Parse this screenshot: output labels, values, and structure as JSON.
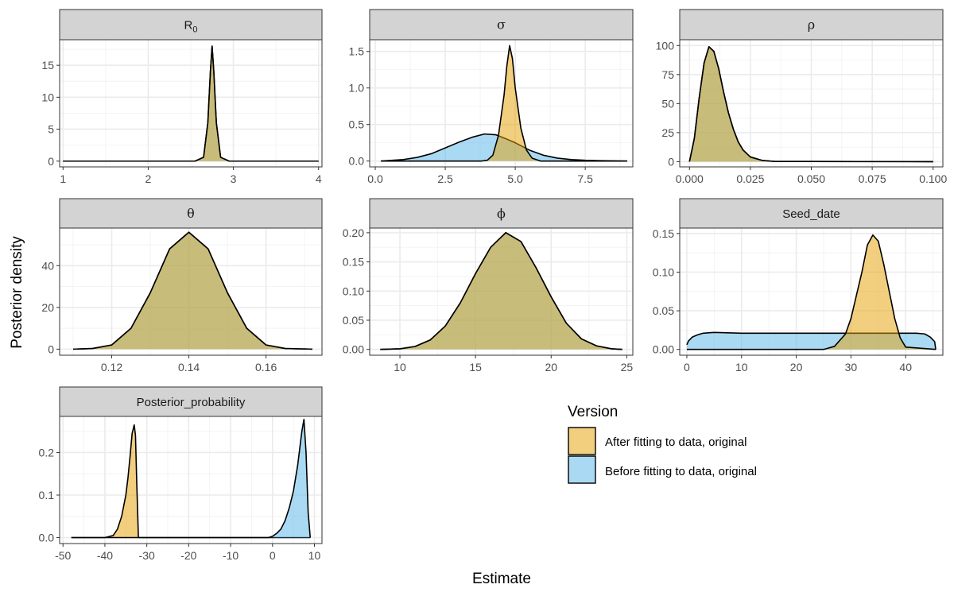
{
  "chart_data": {
    "type": "area",
    "xlabel": "Estimate",
    "ylabel": "Posterior density",
    "legend": {
      "title": "Version",
      "position": "right",
      "entries": [
        {
          "key": "after",
          "label": "After fitting to data, original",
          "color": "#E69F00"
        },
        {
          "key": "before",
          "label": "Before fitting to data, original",
          "color": "#56B4E9"
        }
      ]
    },
    "panels": [
      {
        "id": "R0",
        "title_base": "R",
        "title_sub": "0",
        "xlim": [
          0.96,
          4.04
        ],
        "ylim": [
          -0.9,
          19.0
        ],
        "xticks": [
          1,
          2,
          3,
          4
        ],
        "xtick_labels": [
          "1",
          "2",
          "3",
          "4"
        ],
        "yticks": [
          0,
          5,
          10,
          15
        ],
        "ytick_labels": [
          "0",
          "5",
          "10",
          "15"
        ],
        "series": [
          {
            "name": "before",
            "x": [
              1.0,
              2.55,
              2.65,
              2.7,
              2.73,
              2.75,
              2.77,
              2.8,
              2.85,
              2.95,
              4.0
            ],
            "y": [
              0,
              0,
              0.6,
              6,
              14,
              18,
              14,
              6,
              0.6,
              0,
              0
            ]
          },
          {
            "name": "after",
            "x": [
              1.0,
              2.55,
              2.65,
              2.7,
              2.73,
              2.75,
              2.77,
              2.8,
              2.85,
              2.95,
              4.0
            ],
            "y": [
              0,
              0,
              0.6,
              6,
              14,
              18,
              14,
              6,
              0.6,
              0,
              0
            ]
          }
        ]
      },
      {
        "id": "sigma",
        "title": "σ",
        "xlim": [
          -0.2,
          9.2
        ],
        "ylim": [
          -0.08,
          1.66
        ],
        "xticks": [
          0,
          2.5,
          5,
          7.5
        ],
        "xtick_labels": [
          "0.0",
          "2.5",
          "5.0",
          "7.5"
        ],
        "yticks": [
          0,
          0.5,
          1.0,
          1.5
        ],
        "ytick_labels": [
          "0.0",
          "0.5",
          "1.0",
          "1.5"
        ],
        "series": [
          {
            "name": "before",
            "x": [
              0.2,
              1.0,
              1.5,
              2.0,
              2.5,
              3.0,
              3.5,
              3.9,
              4.3,
              4.7,
              5.0,
              5.5,
              6.0,
              6.5,
              7.0,
              7.5,
              8.0,
              9.0
            ],
            "y": [
              0,
              0.02,
              0.05,
              0.1,
              0.18,
              0.26,
              0.33,
              0.37,
              0.36,
              0.3,
              0.25,
              0.15,
              0.08,
              0.04,
              0.02,
              0.01,
              0.005,
              0
            ]
          },
          {
            "name": "after",
            "x": [
              0.2,
              3.8,
              4.0,
              4.2,
              4.4,
              4.6,
              4.7,
              4.8,
              4.9,
              5.0,
              5.2,
              5.4,
              5.6,
              5.9,
              9.0
            ],
            "y": [
              0,
              0,
              0.01,
              0.08,
              0.35,
              0.9,
              1.3,
              1.58,
              1.4,
              1.0,
              0.45,
              0.15,
              0.04,
              0,
              0
            ]
          }
        ]
      },
      {
        "id": "rho",
        "title": "ρ",
        "xlim": [
          -0.004,
          0.104
        ],
        "ylim": [
          -4.5,
          105
        ],
        "xticks": [
          0,
          0.025,
          0.05,
          0.075,
          0.1
        ],
        "xtick_labels": [
          "0.000",
          "0.025",
          "0.050",
          "0.075",
          "0.100"
        ],
        "yticks": [
          0,
          25,
          50,
          75,
          100
        ],
        "ytick_labels": [
          "0",
          "25",
          "50",
          "75",
          "100"
        ],
        "series": [
          {
            "name": "before",
            "x": [
              0.0,
              0.002,
              0.004,
              0.006,
              0.008,
              0.01,
              0.012,
              0.014,
              0.016,
              0.018,
              0.02,
              0.022,
              0.025,
              0.03,
              0.035,
              0.1
            ],
            "y": [
              0,
              20,
              55,
              85,
              99,
              95,
              80,
              60,
              42,
              28,
              17,
              10,
              4,
              1,
              0.2,
              0
            ]
          },
          {
            "name": "after",
            "x": [
              0.0,
              0.002,
              0.004,
              0.006,
              0.008,
              0.01,
              0.012,
              0.014,
              0.016,
              0.018,
              0.02,
              0.022,
              0.025,
              0.03,
              0.035,
              0.1
            ],
            "y": [
              0,
              20,
              55,
              85,
              99,
              95,
              80,
              60,
              42,
              28,
              17,
              10,
              4,
              1,
              0.2,
              0
            ]
          }
        ]
      },
      {
        "id": "theta",
        "title": "θ",
        "xlim": [
          0.1065,
          0.1745
        ],
        "ylim": [
          -2.9,
          58.0
        ],
        "xticks": [
          0.12,
          0.14,
          0.16
        ],
        "xtick_labels": [
          "0.12",
          "0.14",
          "0.16"
        ],
        "yticks": [
          0,
          20,
          40
        ],
        "ytick_labels": [
          "0",
          "20",
          "40"
        ],
        "series": [
          {
            "name": "before",
            "x": [
              0.11,
              0.115,
              0.12,
              0.125,
              0.13,
              0.135,
              0.14,
              0.145,
              0.15,
              0.155,
              0.16,
              0.165,
              0.172
            ],
            "y": [
              0,
              0.3,
              2,
              10,
              27,
              48,
              56,
              48,
              27,
              10,
              2,
              0.3,
              0
            ]
          },
          {
            "name": "after",
            "x": [
              0.11,
              0.115,
              0.12,
              0.125,
              0.13,
              0.135,
              0.14,
              0.145,
              0.15,
              0.155,
              0.16,
              0.165,
              0.172
            ],
            "y": [
              0,
              0.3,
              2,
              10,
              27,
              48,
              56,
              48,
              27,
              10,
              2,
              0.3,
              0
            ]
          }
        ]
      },
      {
        "id": "phi",
        "title": "ϕ",
        "xlim": [
          8.0,
          25.4
        ],
        "ylim": [
          -0.01,
          0.208
        ],
        "xticks": [
          10,
          15,
          20,
          25
        ],
        "xtick_labels": [
          "10",
          "15",
          "20",
          "25"
        ],
        "yticks": [
          0,
          0.05,
          0.1,
          0.15,
          0.2
        ],
        "ytick_labels": [
          "0.00",
          "0.05",
          "0.10",
          "0.15",
          "0.20"
        ],
        "series": [
          {
            "name": "before",
            "x": [
              8.7,
              10.0,
              11.0,
              12.0,
              13.0,
              14.0,
              15.0,
              16.0,
              17.0,
              18.0,
              19.0,
              20.0,
              21.0,
              22.0,
              23.0,
              24.0,
              24.7
            ],
            "y": [
              0,
              0.001,
              0.005,
              0.016,
              0.04,
              0.08,
              0.13,
              0.175,
              0.2,
              0.185,
              0.14,
              0.09,
              0.045,
              0.018,
              0.006,
              0.001,
              0
            ]
          },
          {
            "name": "after",
            "x": [
              8.7,
              10.0,
              11.0,
              12.0,
              13.0,
              14.0,
              15.0,
              16.0,
              17.0,
              18.0,
              19.0,
              20.0,
              21.0,
              22.0,
              23.0,
              24.0,
              24.7
            ],
            "y": [
              0,
              0.001,
              0.005,
              0.016,
              0.04,
              0.08,
              0.13,
              0.175,
              0.2,
              0.185,
              0.14,
              0.09,
              0.045,
              0.018,
              0.006,
              0.001,
              0
            ]
          }
        ]
      },
      {
        "id": "seed",
        "title": "Seed_date",
        "xlim": [
          -1.3,
          46.8
        ],
        "ylim": [
          -0.0075,
          0.157
        ],
        "xticks": [
          0,
          10,
          20,
          30,
          40
        ],
        "xtick_labels": [
          "0",
          "10",
          "20",
          "30",
          "40"
        ],
        "yticks": [
          0,
          0.05,
          0.1,
          0.15
        ],
        "ytick_labels": [
          "0.00",
          "0.05",
          "0.10",
          "0.15"
        ],
        "series": [
          {
            "name": "before",
            "x": [
              0,
              0.3,
              1,
              2,
              3,
              5,
              10,
              20,
              30,
              40,
              42,
              43.5,
              44.5,
              45.3,
              45.5
            ],
            "y": [
              0.006,
              0.011,
              0.016,
              0.019,
              0.021,
              0.022,
              0.021,
              0.021,
              0.021,
              0.021,
              0.021,
              0.02,
              0.016,
              0.01,
              0
            ]
          },
          {
            "name": "after",
            "x": [
              0,
              25,
              27,
              29,
              30,
              31,
              32,
              33,
              34,
              35,
              36,
              37,
              38,
              39,
              40,
              45.5
            ],
            "y": [
              0,
              0,
              0.004,
              0.02,
              0.04,
              0.07,
              0.1,
              0.135,
              0.148,
              0.14,
              0.11,
              0.075,
              0.04,
              0.015,
              0.003,
              0
            ]
          }
        ]
      },
      {
        "id": "postprob",
        "title": "Posterior_probability",
        "xlim": [
          -50.8,
          11.8
        ],
        "ylim": [
          -0.014,
          0.285
        ],
        "xticks": [
          -50,
          -40,
          -30,
          -20,
          -10,
          0,
          10
        ],
        "xtick_labels": [
          "-50",
          "-40",
          "-30",
          "-20",
          "-10",
          "0",
          "10"
        ],
        "yticks": [
          0,
          0.1,
          0.2
        ],
        "ytick_labels": [
          "0.0",
          "0.1",
          "0.2"
        ],
        "series": [
          {
            "name": "after",
            "x": [
              -48,
              -40,
              -38,
              -37,
              -36,
              -35,
              -34.5,
              -34,
              -33.5,
              -33,
              -32.7,
              -32.4,
              -32,
              9
            ],
            "y": [
              0,
              0,
              0.005,
              0.02,
              0.05,
              0.1,
              0.14,
              0.19,
              0.245,
              0.265,
              0.24,
              0.13,
              0,
              0
            ]
          },
          {
            "name": "before",
            "x": [
              -48,
              -1,
              0,
              1,
              2,
              3,
              4,
              5,
              6,
              7,
              7.5,
              8,
              8.5,
              9
            ],
            "y": [
              0,
              0,
              0.003,
              0.01,
              0.02,
              0.04,
              0.07,
              0.11,
              0.17,
              0.25,
              0.278,
              0.2,
              0.06,
              0
            ]
          }
        ]
      }
    ]
  }
}
